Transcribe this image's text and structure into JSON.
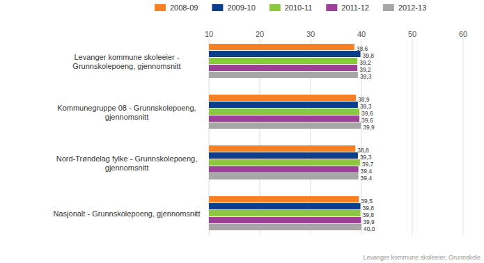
{
  "chart_data": {
    "type": "bar",
    "orientation": "horizontal",
    "data_labels": true,
    "grid": true,
    "legend": "top",
    "categories": [
      "Levanger kommune skoleeier - Grunnskolepoeng, gjennomsnitt",
      "Kommunegruppe 08 - Grunnskolepoeng, gjennomsnitt",
      "Nord-Trøndelag fylke - Grunnskolepoeng, gjennomsnitt",
      "Nasjonalt - Grunnskolepoeng, gjennomsnitt"
    ],
    "series": [
      {
        "name": "2008-09",
        "color": "#f58025",
        "values": [
          38.6,
          38.9,
          38.8,
          39.5
        ],
        "value_labels": [
          "38,6",
          "38,9",
          "38,8",
          "39,5"
        ]
      },
      {
        "name": "2009-10",
        "color": "#0b3f8c",
        "values": [
          39.8,
          39.3,
          39.3,
          39.8
        ],
        "value_labels": [
          "39,8",
          "39,3",
          "39,3",
          "39,8"
        ]
      },
      {
        "name": "2010-11",
        "color": "#8dc63f",
        "values": [
          39.2,
          39.6,
          39.7,
          39.8
        ],
        "value_labels": [
          "39,2",
          "39,6",
          "39,7",
          "39,8"
        ]
      },
      {
        "name": "2011-12",
        "color": "#9b3f97",
        "values": [
          39.2,
          39.6,
          39.4,
          39.9
        ],
        "value_labels": [
          "39,2",
          "39,6",
          "39,4",
          "39,9"
        ]
      },
      {
        "name": "2012-13",
        "color": "#a6a6a6",
        "values": [
          39.3,
          39.9,
          39.4,
          40.0
        ],
        "value_labels": [
          "39,3",
          "39,9",
          "39,4",
          "40,0"
        ]
      }
    ],
    "xlim": [
      10,
      60
    ],
    "xticks": [
      10,
      20,
      30,
      40,
      50,
      60
    ],
    "annotations": [
      "Levanger kommune skoleeier, Grunnskole"
    ]
  }
}
